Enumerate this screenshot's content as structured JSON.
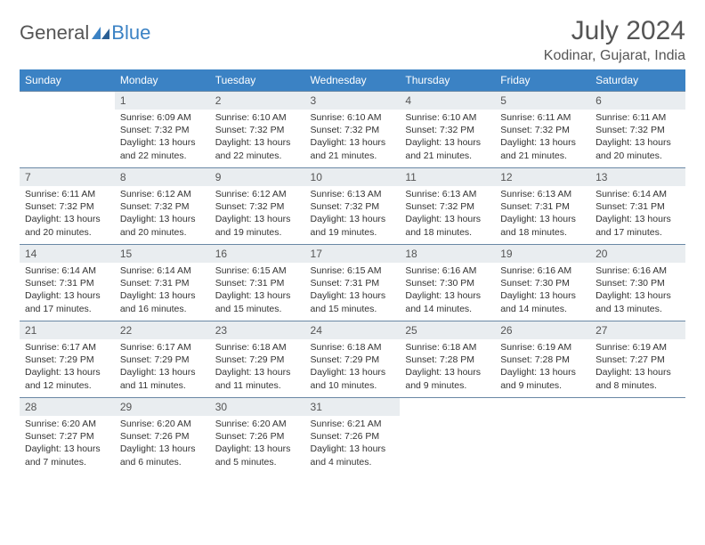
{
  "logo": {
    "text1": "General",
    "text2": "Blue"
  },
  "title": "July 2024",
  "location": "Kodinar, Gujarat, India",
  "colors": {
    "header_bg": "#3b82c4",
    "header_text": "#ffffff",
    "daynum_bg": "#e9edf0",
    "border": "#6a88a5",
    "text": "#333333",
    "title_text": "#555555"
  },
  "day_headers": [
    "Sunday",
    "Monday",
    "Tuesday",
    "Wednesday",
    "Thursday",
    "Friday",
    "Saturday"
  ],
  "weeks": [
    [
      null,
      {
        "n": "1",
        "sr": "6:09 AM",
        "ss": "7:32 PM",
        "dl": "13 hours and 22 minutes."
      },
      {
        "n": "2",
        "sr": "6:10 AM",
        "ss": "7:32 PM",
        "dl": "13 hours and 22 minutes."
      },
      {
        "n": "3",
        "sr": "6:10 AM",
        "ss": "7:32 PM",
        "dl": "13 hours and 21 minutes."
      },
      {
        "n": "4",
        "sr": "6:10 AM",
        "ss": "7:32 PM",
        "dl": "13 hours and 21 minutes."
      },
      {
        "n": "5",
        "sr": "6:11 AM",
        "ss": "7:32 PM",
        "dl": "13 hours and 21 minutes."
      },
      {
        "n": "6",
        "sr": "6:11 AM",
        "ss": "7:32 PM",
        "dl": "13 hours and 20 minutes."
      }
    ],
    [
      {
        "n": "7",
        "sr": "6:11 AM",
        "ss": "7:32 PM",
        "dl": "13 hours and 20 minutes."
      },
      {
        "n": "8",
        "sr": "6:12 AM",
        "ss": "7:32 PM",
        "dl": "13 hours and 20 minutes."
      },
      {
        "n": "9",
        "sr": "6:12 AM",
        "ss": "7:32 PM",
        "dl": "13 hours and 19 minutes."
      },
      {
        "n": "10",
        "sr": "6:13 AM",
        "ss": "7:32 PM",
        "dl": "13 hours and 19 minutes."
      },
      {
        "n": "11",
        "sr": "6:13 AM",
        "ss": "7:32 PM",
        "dl": "13 hours and 18 minutes."
      },
      {
        "n": "12",
        "sr": "6:13 AM",
        "ss": "7:31 PM",
        "dl": "13 hours and 18 minutes."
      },
      {
        "n": "13",
        "sr": "6:14 AM",
        "ss": "7:31 PM",
        "dl": "13 hours and 17 minutes."
      }
    ],
    [
      {
        "n": "14",
        "sr": "6:14 AM",
        "ss": "7:31 PM",
        "dl": "13 hours and 17 minutes."
      },
      {
        "n": "15",
        "sr": "6:14 AM",
        "ss": "7:31 PM",
        "dl": "13 hours and 16 minutes."
      },
      {
        "n": "16",
        "sr": "6:15 AM",
        "ss": "7:31 PM",
        "dl": "13 hours and 15 minutes."
      },
      {
        "n": "17",
        "sr": "6:15 AM",
        "ss": "7:31 PM",
        "dl": "13 hours and 15 minutes."
      },
      {
        "n": "18",
        "sr": "6:16 AM",
        "ss": "7:30 PM",
        "dl": "13 hours and 14 minutes."
      },
      {
        "n": "19",
        "sr": "6:16 AM",
        "ss": "7:30 PM",
        "dl": "13 hours and 14 minutes."
      },
      {
        "n": "20",
        "sr": "6:16 AM",
        "ss": "7:30 PM",
        "dl": "13 hours and 13 minutes."
      }
    ],
    [
      {
        "n": "21",
        "sr": "6:17 AM",
        "ss": "7:29 PM",
        "dl": "13 hours and 12 minutes."
      },
      {
        "n": "22",
        "sr": "6:17 AM",
        "ss": "7:29 PM",
        "dl": "13 hours and 11 minutes."
      },
      {
        "n": "23",
        "sr": "6:18 AM",
        "ss": "7:29 PM",
        "dl": "13 hours and 11 minutes."
      },
      {
        "n": "24",
        "sr": "6:18 AM",
        "ss": "7:29 PM",
        "dl": "13 hours and 10 minutes."
      },
      {
        "n": "25",
        "sr": "6:18 AM",
        "ss": "7:28 PM",
        "dl": "13 hours and 9 minutes."
      },
      {
        "n": "26",
        "sr": "6:19 AM",
        "ss": "7:28 PM",
        "dl": "13 hours and 9 minutes."
      },
      {
        "n": "27",
        "sr": "6:19 AM",
        "ss": "7:27 PM",
        "dl": "13 hours and 8 minutes."
      }
    ],
    [
      {
        "n": "28",
        "sr": "6:20 AM",
        "ss": "7:27 PM",
        "dl": "13 hours and 7 minutes."
      },
      {
        "n": "29",
        "sr": "6:20 AM",
        "ss": "7:26 PM",
        "dl": "13 hours and 6 minutes."
      },
      {
        "n": "30",
        "sr": "6:20 AM",
        "ss": "7:26 PM",
        "dl": "13 hours and 5 minutes."
      },
      {
        "n": "31",
        "sr": "6:21 AM",
        "ss": "7:26 PM",
        "dl": "13 hours and 4 minutes."
      },
      null,
      null,
      null
    ]
  ],
  "labels": {
    "sunrise": "Sunrise:",
    "sunset": "Sunset:",
    "daylight": "Daylight:"
  }
}
